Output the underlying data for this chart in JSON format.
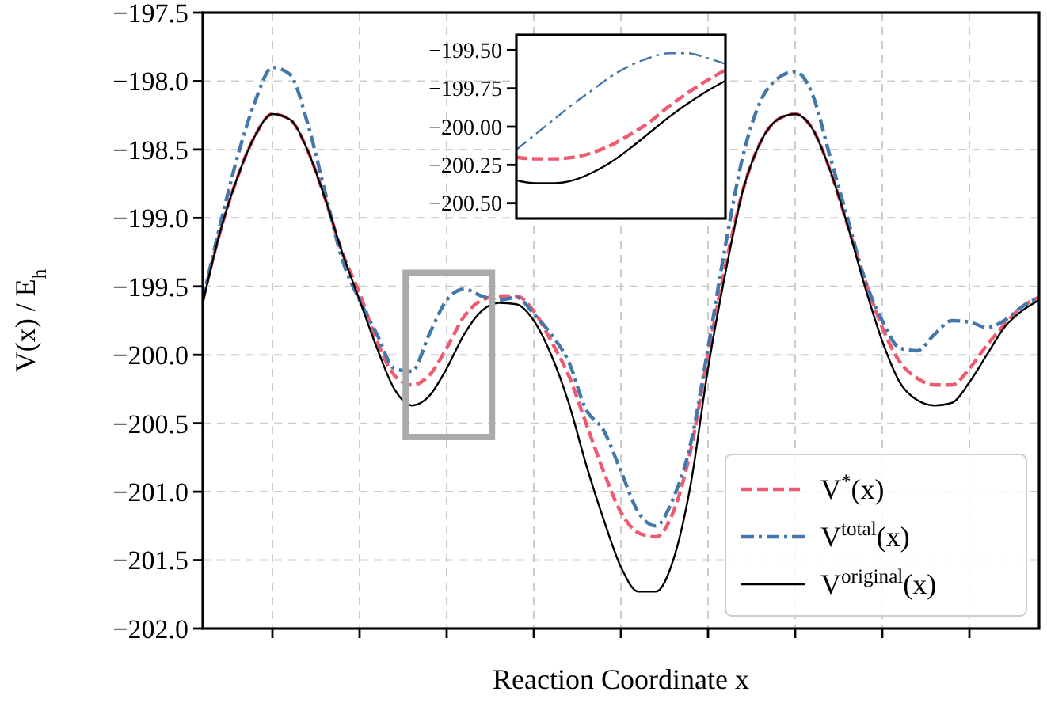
{
  "chart_data": [
    {
      "type": "line",
      "xlabel": "Reaction Coordinate x",
      "ylabel": "V(x) / E$_{h}$",
      "categories": [
        null,
        null,
        null,
        null,
        null,
        null,
        null,
        null,
        null,
        null,
        null,
        null,
        null,
        null,
        null,
        null,
        null,
        null,
        null,
        null,
        null,
        null,
        null,
        null,
        null,
        null,
        null,
        null,
        null,
        null,
        null,
        null,
        null,
        null,
        null,
        null,
        null,
        null,
        null,
        null,
        null,
        null,
        null,
        null,
        null,
        null,
        null,
        null,
        null
      ],
      "ylim": [
        -202,
        -197.5
      ],
      "yticks": [
        {
          "value": -202,
          "label": "−202.0"
        },
        {
          "value": -201.5,
          "label": "−201.5"
        },
        {
          "value": -201,
          "label": "−201.0"
        },
        {
          "value": -200.5,
          "label": "−200.5"
        },
        {
          "value": -200,
          "label": "−200.0"
        },
        {
          "value": -199.5,
          "label": "−199.5"
        },
        {
          "value": -199,
          "label": "−199.0"
        },
        {
          "value": -198.5,
          "label": "−198.5"
        },
        {
          "value": -198,
          "label": "−198.0"
        },
        {
          "value": -197.5,
          "label": "−197.5"
        }
      ],
      "grid": true,
      "legend": "bottom right",
      "tick_labels": "y",
      "series": [
        {
          "name": "V$^{*}$(x)",
          "color": "#ee5a70",
          "line_style": "dashed",
          "values": [
            -199.6,
            -199.1,
            -198.7,
            -198.4,
            -198.24,
            -198.28,
            -198.5,
            -198.85,
            -199.25,
            -199.55,
            -199.9,
            -200.15,
            -200.22,
            -200.15,
            -199.95,
            -199.72,
            -199.6,
            -199.57,
            -199.57,
            -199.68,
            -199.9,
            -200.15,
            -200.5,
            -200.85,
            -201.15,
            -201.3,
            -201.33,
            -201.15,
            -200.7,
            -200,
            -199.35,
            -198.8,
            -198.45,
            -198.28,
            -198.24,
            -198.35,
            -198.65,
            -199.05,
            -199.45,
            -199.8,
            -200.05,
            -200.17,
            -200.22,
            -200.22,
            -200.1,
            -199.93,
            -199.78,
            -199.65,
            -199.58
          ]
        },
        {
          "name": "V$^{total}$(x)",
          "color": "#4477aa",
          "line_style": "dashdot",
          "values": [
            -199.6,
            -199.05,
            -198.55,
            -198.15,
            -197.9,
            -197.95,
            -198.3,
            -198.8,
            -199.3,
            -199.6,
            -199.85,
            -200.1,
            -200.12,
            -199.85,
            -199.6,
            -199.52,
            -199.57,
            -199.6,
            -199.58,
            -199.7,
            -199.85,
            -200.05,
            -200.4,
            -200.55,
            -200.85,
            -201.15,
            -201.25,
            -201.05,
            -200.65,
            -199.95,
            -199.2,
            -198.55,
            -198.15,
            -197.98,
            -197.93,
            -198.1,
            -198.55,
            -199,
            -199.45,
            -199.75,
            -199.95,
            -199.97,
            -199.85,
            -199.75,
            -199.76,
            -199.8,
            -199.75,
            -199.65,
            -199.58
          ]
        },
        {
          "name": "V$^{original}$(x)",
          "color": "#000000",
          "line_style": "solid",
          "values": [
            -199.62,
            -199.1,
            -198.7,
            -198.4,
            -198.24,
            -198.28,
            -198.5,
            -198.85,
            -199.25,
            -199.6,
            -199.95,
            -200.25,
            -200.37,
            -200.3,
            -200.1,
            -199.85,
            -199.68,
            -199.62,
            -199.63,
            -199.75,
            -200,
            -200.35,
            -200.8,
            -201.2,
            -201.55,
            -201.73,
            -201.73,
            -201.5,
            -200.95,
            -200.1,
            -199.4,
            -198.8,
            -198.45,
            -198.28,
            -198.24,
            -198.35,
            -198.65,
            -199.05,
            -199.5,
            -199.9,
            -200.2,
            -200.33,
            -200.37,
            -200.35,
            -200.2,
            -200,
            -199.8,
            -199.68,
            -199.6
          ]
        }
      ]
    },
    {
      "type": "line",
      "categories": [
        null,
        null,
        null,
        null,
        null,
        null,
        null,
        null,
        null,
        null,
        null,
        null
      ],
      "ylim": [
        -200.6,
        -199.4
      ],
      "yticks": [
        {
          "value": -200.5,
          "label": "−200.50"
        },
        {
          "value": -200.25,
          "label": "−200.25"
        },
        {
          "value": -200,
          "label": "−200.00"
        },
        {
          "value": -199.75,
          "label": "−199.75"
        },
        {
          "value": -199.5,
          "label": "−199.50"
        }
      ],
      "tick_labels": "y",
      "series": [
        {
          "color": "#ee5a70",
          "line_style": "dashed",
          "values": [
            -200.2,
            -200.21,
            -200.21,
            -200.2,
            -200.17,
            -200.12,
            -200.05,
            -199.97,
            -199.87,
            -199.78,
            -199.7,
            -199.63
          ]
        },
        {
          "color": "#4477aa",
          "line_style": "dashdot",
          "values": [
            -200.15,
            -200.05,
            -199.95,
            -199.85,
            -199.76,
            -199.67,
            -199.6,
            -199.55,
            -199.52,
            -199.52,
            -199.55,
            -199.59
          ]
        },
        {
          "color": "#000000",
          "line_style": "solid",
          "values": [
            -200.35,
            -200.37,
            -200.37,
            -200.35,
            -200.3,
            -200.23,
            -200.14,
            -200.04,
            -199.94,
            -199.85,
            -199.77,
            -199.7
          ]
        }
      ]
    }
  ]
}
